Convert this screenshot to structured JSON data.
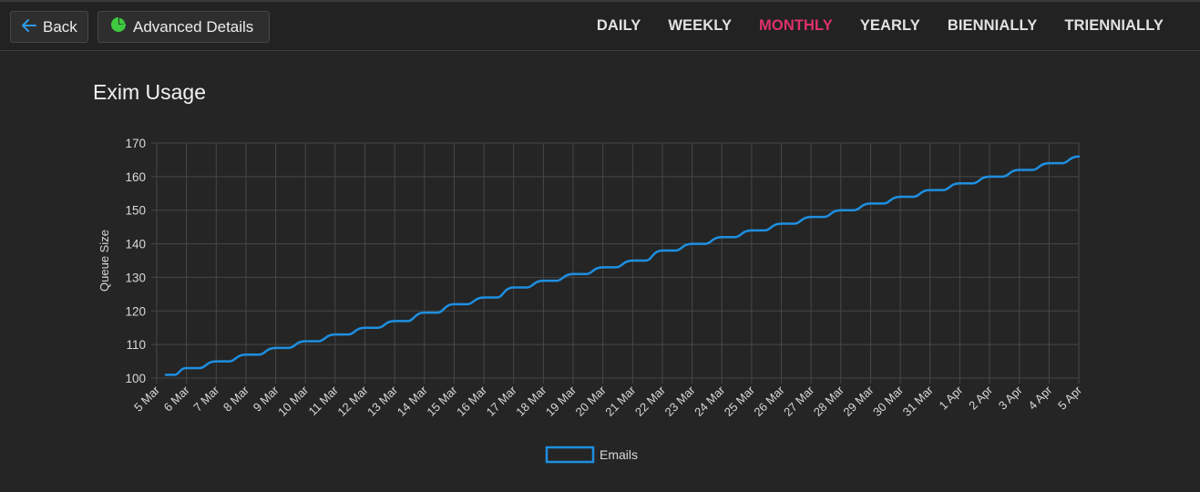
{
  "toolbar": {
    "back_label": "Back",
    "back_icon": "arrow-left-icon",
    "advanced_label": "Advanced Details",
    "advanced_icon": "pie-chart-icon"
  },
  "tabs": [
    {
      "label": "DAILY",
      "active": false
    },
    {
      "label": "WEEKLY",
      "active": false
    },
    {
      "label": "MONTHLY",
      "active": true
    },
    {
      "label": "YEARLY",
      "active": false
    },
    {
      "label": "BIENNIALLY",
      "active": false
    },
    {
      "label": "TRIENNIALLY",
      "active": false
    }
  ],
  "colors": {
    "background": "#252525",
    "accent_active_tab": "#e0306f",
    "series_line": "#1e8fe0",
    "advanced_icon": "#3fc93f"
  },
  "page": {
    "title": "Exim Usage"
  },
  "chart_data": {
    "type": "line",
    "title": "",
    "xlabel": "",
    "ylabel": "Queue Size",
    "ylim": [
      100,
      170
    ],
    "yticks": [
      100,
      110,
      120,
      130,
      140,
      150,
      160,
      170
    ],
    "grid": true,
    "legend_position": "bottom",
    "categories": [
      "5 Mar",
      "6 Mar",
      "7 Mar",
      "8 Mar",
      "9 Mar",
      "10 Mar",
      "11 Mar",
      "12 Mar",
      "13 Mar",
      "14 Mar",
      "15 Mar",
      "16 Mar",
      "17 Mar",
      "18 Mar",
      "19 Mar",
      "20 Mar",
      "21 Mar",
      "22 Mar",
      "23 Mar",
      "24 Mar",
      "25 Mar",
      "26 Mar",
      "27 Mar",
      "28 Mar",
      "29 Mar",
      "30 Mar",
      "31 Mar",
      "1 Apr",
      "2 Apr",
      "3 Apr",
      "4 Apr",
      "5 Apr"
    ],
    "series": [
      {
        "name": "Emails",
        "color": "#1e8fe0",
        "values": [
          101,
          103,
          105,
          107,
          109,
          111,
          113,
          115,
          117,
          119.5,
          122,
          124,
          127,
          129,
          131,
          133,
          135,
          138,
          140,
          142,
          144,
          146,
          148,
          150,
          152,
          154,
          156,
          158,
          160,
          162,
          164,
          166
        ]
      }
    ]
  }
}
